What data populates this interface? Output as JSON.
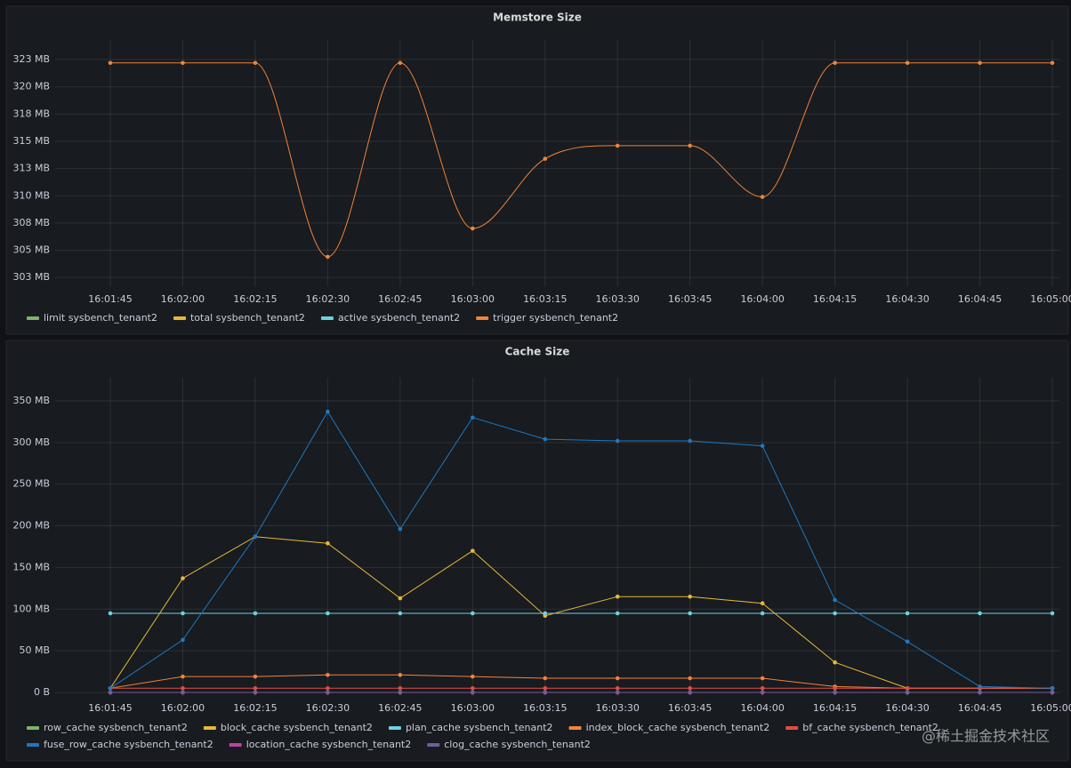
{
  "chart_data": [
    {
      "type": "line",
      "title": "Memstore Size",
      "smooth": true,
      "grid": true,
      "categories": [
        "16:01:45",
        "16:02:00",
        "16:02:15",
        "16:02:30",
        "16:02:45",
        "16:03:00",
        "16:03:15",
        "16:03:30",
        "16:03:45",
        "16:04:00",
        "16:04:15",
        "16:04:30",
        "16:04:45",
        "16:05:00"
      ],
      "ylim": [
        301.7,
        324.3
      ],
      "yticks": [
        {
          "value": 302.5,
          "label": "303 MB"
        },
        {
          "value": 305,
          "label": "305 MB"
        },
        {
          "value": 307.5,
          "label": "308 MB"
        },
        {
          "value": 310,
          "label": "310 MB"
        },
        {
          "value": 312.5,
          "label": "313 MB"
        },
        {
          "value": 315,
          "label": "315 MB"
        },
        {
          "value": 317.5,
          "label": "318 MB"
        },
        {
          "value": 320,
          "label": "320 MB"
        },
        {
          "value": 322.5,
          "label": "323 MB"
        }
      ],
      "series": [
        {
          "name": "limit sysbench_tenant2",
          "color": "#7eb26d",
          "values": [
            null,
            null,
            null,
            null,
            null,
            null,
            null,
            null,
            null,
            null,
            null,
            null,
            null,
            null
          ]
        },
        {
          "name": "total sysbench_tenant2",
          "color": "#eab839",
          "values": [
            null,
            null,
            null,
            null,
            null,
            null,
            null,
            null,
            null,
            null,
            null,
            null,
            null,
            null
          ]
        },
        {
          "name": "active sysbench_tenant2",
          "color": "#6ed0e0",
          "values": [
            null,
            null,
            null,
            null,
            null,
            null,
            null,
            null,
            null,
            null,
            null,
            null,
            null,
            null
          ]
        },
        {
          "name": "trigger sysbench_tenant2",
          "color": "#ef843c",
          "values": [
            322.2,
            322.2,
            322.2,
            304.4,
            322.2,
            307.0,
            313.4,
            314.6,
            314.6,
            309.9,
            322.2,
            322.2,
            322.2,
            322.2
          ]
        }
      ]
    },
    {
      "type": "line",
      "title": "Cache Size",
      "smooth": false,
      "grid": true,
      "categories": [
        "16:01:45",
        "16:02:00",
        "16:02:15",
        "16:02:30",
        "16:02:45",
        "16:03:00",
        "16:03:15",
        "16:03:30",
        "16:03:45",
        "16:04:00",
        "16:04:15",
        "16:04:30",
        "16:04:45",
        "16:05:00"
      ],
      "ylim": [
        -4.3,
        377.7
      ],
      "yticks": [
        {
          "value": 0,
          "label": "0 B"
        },
        {
          "value": 50,
          "label": "50 MB"
        },
        {
          "value": 100,
          "label": "100 MB"
        },
        {
          "value": 150,
          "label": "150 MB"
        },
        {
          "value": 200,
          "label": "200 MB"
        },
        {
          "value": 250,
          "label": "250 MB"
        },
        {
          "value": 300,
          "label": "300 MB"
        },
        {
          "value": 350,
          "label": "350 MB"
        }
      ],
      "series": [
        {
          "name": "row_cache sysbench_tenant2",
          "color": "#7eb26d",
          "values": [
            0,
            0,
            0,
            0,
            0,
            0,
            0,
            0,
            0,
            0,
            0,
            0,
            0,
            0
          ]
        },
        {
          "name": "block_cache sysbench_tenant2",
          "color": "#eab839",
          "values": [
            5,
            137,
            187,
            179,
            113,
            170,
            92,
            115,
            115,
            107,
            36,
            5,
            5,
            5
          ]
        },
        {
          "name": "plan_cache sysbench_tenant2",
          "color": "#6ed0e0",
          "values": [
            95,
            95,
            95,
            95,
            95,
            95,
            95,
            95,
            95,
            95,
            95,
            95,
            95,
            95
          ]
        },
        {
          "name": "index_block_cache sysbench_tenant2",
          "color": "#ef843c",
          "values": [
            5,
            19,
            19,
            21,
            21,
            19,
            17,
            17,
            17,
            17,
            7,
            5,
            5,
            5
          ]
        },
        {
          "name": "bf_cache sysbench_tenant2",
          "color": "#e24d42",
          "values": [
            5,
            5,
            5,
            5,
            5,
            5,
            5,
            5,
            5,
            5,
            5,
            5,
            5,
            5
          ]
        },
        {
          "name": "fuse_row_cache sysbench_tenant2",
          "color": "#1f78c1",
          "values": [
            5,
            63,
            187,
            337,
            196,
            330,
            304,
            302,
            302,
            296,
            111,
            61,
            7,
            5
          ]
        },
        {
          "name": "location_cache sysbench_tenant2",
          "color": "#ba43a9",
          "values": [
            0,
            0,
            0,
            0,
            0,
            0,
            0,
            0,
            0,
            0,
            0,
            0,
            0,
            0
          ]
        },
        {
          "name": "clog_cache sysbench_tenant2",
          "color": "#705da0",
          "values": [
            0,
            0,
            0,
            0,
            0,
            0,
            0,
            0,
            0,
            0,
            0,
            0,
            0,
            0
          ]
        }
      ]
    }
  ],
  "watermark": "@稀土掘金技术社区"
}
